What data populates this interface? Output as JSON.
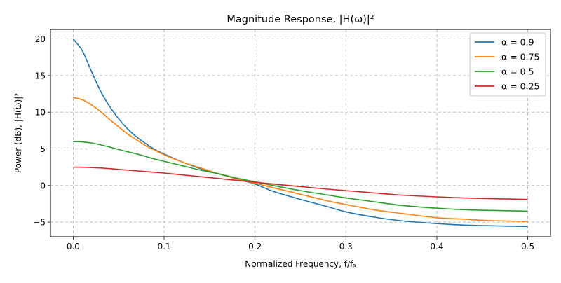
{
  "chart_data": {
    "type": "line",
    "title": "Magnitude Response, |H(ω)|²",
    "xlabel": "Normalized Frequency, f/fₛ",
    "ylabel": "Power (dB), |H(ω)|²",
    "xlim": [
      -0.025,
      0.525
    ],
    "ylim": [
      -7,
      21.3
    ],
    "xticks": [
      0.0,
      0.1,
      0.2,
      0.3,
      0.4,
      0.5
    ],
    "xtick_labels": [
      "0.0",
      "0.1",
      "0.2",
      "0.3",
      "0.4",
      "0.5"
    ],
    "yticks": [
      -5,
      0,
      5,
      10,
      15,
      20
    ],
    "ytick_labels": [
      "−5",
      "0",
      "5",
      "10",
      "15",
      "20"
    ],
    "grid": true,
    "legend_position": "top-right",
    "x": [
      0.0,
      0.01,
      0.02,
      0.03,
      0.04,
      0.05,
      0.06,
      0.07,
      0.08,
      0.09,
      0.1,
      0.12,
      0.14,
      0.16,
      0.18,
      0.2,
      0.22,
      0.25,
      0.28,
      0.3,
      0.33,
      0.36,
      0.4,
      0.43,
      0.46,
      0.5
    ],
    "series": [
      {
        "name": "α = 0.9",
        "color": "#1f77b4",
        "values": [
          20.0,
          18.4,
          15.6,
          12.9,
          10.8,
          9.1,
          7.7,
          6.6,
          5.7,
          4.9,
          4.3,
          3.2,
          2.3,
          1.6,
          0.9,
          0.2,
          -0.8,
          -1.9,
          -2.9,
          -3.6,
          -4.3,
          -4.8,
          -5.2,
          -5.4,
          -5.5,
          -5.6
        ]
      },
      {
        "name": "α = 0.75",
        "color": "#ff7f0e",
        "values": [
          12.0,
          11.7,
          11.0,
          10.1,
          9.0,
          8.0,
          7.0,
          6.2,
          5.4,
          4.8,
          4.2,
          3.2,
          2.4,
          1.6,
          0.9,
          0.3,
          -0.3,
          -1.2,
          -2.1,
          -2.6,
          -3.3,
          -3.8,
          -4.4,
          -4.6,
          -4.8,
          -4.9
        ]
      },
      {
        "name": "α = 0.5",
        "color": "#2ca02c",
        "values": [
          6.0,
          5.95,
          5.8,
          5.55,
          5.25,
          4.9,
          4.6,
          4.3,
          3.95,
          3.6,
          3.3,
          2.7,
          2.1,
          1.6,
          1.0,
          0.5,
          0.0,
          -0.7,
          -1.3,
          -1.7,
          -2.2,
          -2.7,
          -3.1,
          -3.3,
          -3.4,
          -3.5
        ]
      },
      {
        "name": "α = 0.25",
        "color": "#d62728",
        "values": [
          2.5,
          2.5,
          2.45,
          2.4,
          2.3,
          2.2,
          2.1,
          2.0,
          1.9,
          1.8,
          1.7,
          1.45,
          1.2,
          0.95,
          0.7,
          0.45,
          0.2,
          -0.15,
          -0.5,
          -0.7,
          -1.0,
          -1.3,
          -1.55,
          -1.7,
          -1.8,
          -1.9
        ]
      }
    ]
  }
}
